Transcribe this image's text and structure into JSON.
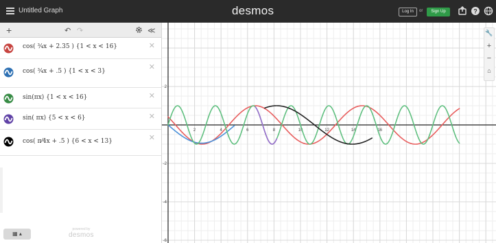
{
  "header": {
    "title": "Untitled Graph",
    "logo": "desmos",
    "login_label": "Log In",
    "or_label": "or",
    "signup_label": "Sign Up",
    "icons": [
      "share-icon",
      "help-icon",
      "language-icon"
    ]
  },
  "toolbar": {
    "add_icon": "+",
    "undo_icon": "↶",
    "redo_icon": "↷",
    "settings_icon": "gear-icon",
    "collapse_icon": "≪"
  },
  "expressions": [
    {
      "text": "cos( ¾x + 2.35 ) {1 < x < 16}",
      "color": "#c74440"
    },
    {
      "text": "cos( ¾x + .5 ) {1 < x < 3}",
      "color": "#2d70b3"
    },
    {
      "text": "sin(πx) {1 < x < 16}",
      "color": "#388c46"
    },
    {
      "text": "sin( πx) {5 < x < 6}",
      "color": "#6042a6"
    },
    {
      "text": "cos( π⁄4x + .5 ) {6 < x < 13}",
      "color": "#000000"
    }
  ],
  "footer": {
    "keyboard_label": "▦ ▴",
    "powered_small": "powered by",
    "powered_big": "desmos"
  },
  "graph": {
    "x_ticks": [
      "2",
      "4",
      "6",
      "8",
      "10",
      "12",
      "14",
      "16"
    ],
    "y_ticks": [
      "2",
      "-2",
      "-4",
      "-6"
    ],
    "side_controls": [
      "wrench-icon",
      "zoom-in-icon",
      "zoom-out-icon",
      "home-icon"
    ],
    "series_colors": {
      "red": "#e85d5d",
      "blue": "#4a90d9",
      "green": "#5fbf7f",
      "purple": "#9b6ccf",
      "black": "#222222"
    }
  }
}
